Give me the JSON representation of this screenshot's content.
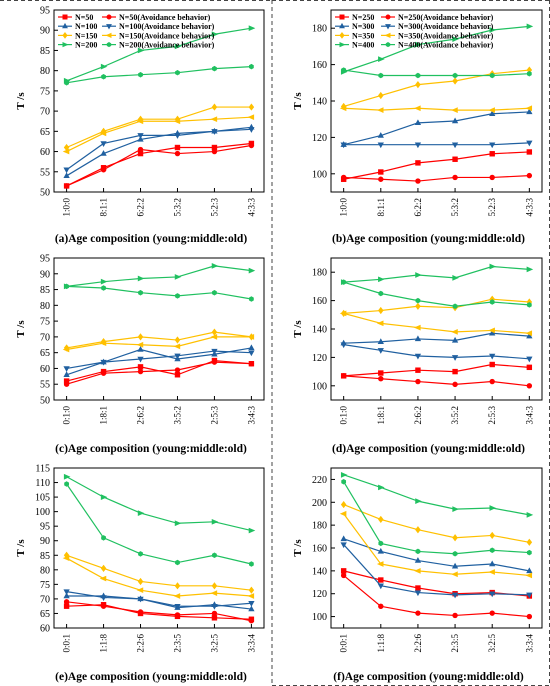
{
  "chart_data": [
    {
      "type": "line",
      "ylabel": "T /s",
      "xlabel": "(a)Age composition (young:middle:old)",
      "categories": [
        "1:0:0",
        "8:1:1",
        "6:2:2",
        "5:3:2",
        "5:2:3",
        "4:3:3"
      ],
      "ylim": [
        50,
        95
      ],
      "yticks": [
        50,
        55,
        60,
        65,
        70,
        75,
        80,
        85,
        90,
        95
      ],
      "legend_position": "top-left",
      "series": [
        {
          "name": "N=50",
          "color": "#ff0000",
          "marker": "square",
          "values": [
            51.5,
            56.0,
            59.5,
            61.0,
            61.0,
            62.0
          ]
        },
        {
          "name": "N=50(Avoidance behavior)",
          "color": "#ff0000",
          "marker": "circle",
          "values": [
            51.5,
            55.5,
            60.5,
            59.5,
            60.0,
            61.5
          ]
        },
        {
          "name": "N=100",
          "color": "#2060a0",
          "marker": "triangle-up",
          "values": [
            54.0,
            59.5,
            63.0,
            64.5,
            65.0,
            66.0
          ]
        },
        {
          "name": "N=100(Avoidance behavior)",
          "color": "#2060a0",
          "marker": "triangle-down",
          "values": [
            55.5,
            62.0,
            64.0,
            64.0,
            65.0,
            65.5
          ]
        },
        {
          "name": "N=150",
          "color": "#ffc000",
          "marker": "diamond",
          "values": [
            61.0,
            65.0,
            68.0,
            68.0,
            71.0,
            71.0
          ]
        },
        {
          "name": "N=150(Avoidance behavior)",
          "color": "#ffc000",
          "marker": "arrow-left",
          "values": [
            60.0,
            64.5,
            67.5,
            67.5,
            68.0,
            68.5
          ]
        },
        {
          "name": "N=200",
          "color": "#20c060",
          "marker": "arrow-right",
          "values": [
            77.5,
            81.0,
            85.0,
            86.0,
            89.0,
            90.5
          ]
        },
        {
          "name": "N=200(Avoidance behavior)",
          "color": "#20c060",
          "marker": "hexagon",
          "values": [
            77.0,
            78.5,
            79.0,
            79.5,
            80.5,
            81.0
          ]
        }
      ]
    },
    {
      "type": "line",
      "ylabel": "T /s",
      "xlabel": "(b)Age composition (young:middle:old)",
      "categories": [
        "1:0:0",
        "8:1:1",
        "6:2:2",
        "5:3:2",
        "5:2:3",
        "4:3:3"
      ],
      "ylim": [
        90,
        190
      ],
      "yticks": [
        100,
        120,
        140,
        160,
        180
      ],
      "legend_position": "top-left",
      "series": [
        {
          "name": "N=250",
          "color": "#ff0000",
          "marker": "square",
          "values": [
            97,
            101,
            106,
            108,
            111,
            112
          ]
        },
        {
          "name": "N=250(Avoidance behavior)",
          "color": "#ff0000",
          "marker": "circle",
          "values": [
            98,
            97,
            96,
            98,
            98,
            99
          ]
        },
        {
          "name": "N=300",
          "color": "#2060a0",
          "marker": "triangle-up",
          "values": [
            116,
            121,
            128,
            129,
            133,
            134
          ]
        },
        {
          "name": "N=300(Avoidance behavior)",
          "color": "#2060a0",
          "marker": "triangle-down",
          "values": [
            116,
            116,
            116,
            116,
            116,
            117
          ]
        },
        {
          "name": "N=350",
          "color": "#ffc000",
          "marker": "diamond",
          "values": [
            137,
            143,
            149,
            151,
            155,
            157
          ]
        },
        {
          "name": "N=350(Avoidance behavior)",
          "color": "#ffc000",
          "marker": "arrow-left",
          "values": [
            136,
            135,
            136,
            135,
            135,
            136
          ]
        },
        {
          "name": "N=400",
          "color": "#20c060",
          "marker": "arrow-right",
          "values": [
            156,
            163,
            171,
            174,
            179,
            181
          ]
        },
        {
          "name": "N=400(Avoidance behavior)",
          "color": "#20c060",
          "marker": "hexagon",
          "values": [
            157,
            154,
            154,
            154,
            154,
            155
          ]
        }
      ]
    },
    {
      "type": "line",
      "ylabel": "T /s",
      "xlabel": "(c)Age composition (young:middle:old)",
      "categories": [
        "0:1:0",
        "1:8:1",
        "2:6:2",
        "3:5:2",
        "2:5:3",
        "3:4:3"
      ],
      "ylim": [
        50,
        95
      ],
      "yticks": [
        50,
        55,
        60,
        65,
        70,
        75,
        80,
        85,
        90,
        95
      ],
      "series": [
        {
          "name": "N=50",
          "color": "#ff0000",
          "marker": "square",
          "values": [
            56.0,
            59.0,
            60.5,
            58.0,
            62.5,
            61.5
          ]
        },
        {
          "name": "N=50(Avoidance behavior)",
          "color": "#ff0000",
          "marker": "circle",
          "values": [
            55.0,
            58.5,
            59.0,
            59.5,
            62.0,
            61.5
          ]
        },
        {
          "name": "N=100",
          "color": "#2060a0",
          "marker": "triangle-up",
          "values": [
            58.0,
            62.0,
            66.0,
            63.0,
            64.5,
            66.5
          ]
        },
        {
          "name": "N=100(Avoidance behavior)",
          "color": "#2060a0",
          "marker": "triangle-down",
          "values": [
            60.0,
            62.0,
            63.0,
            64.0,
            65.5,
            65.0
          ]
        },
        {
          "name": "N=150",
          "color": "#ffc000",
          "marker": "diamond",
          "values": [
            66.5,
            68.5,
            70.0,
            69.0,
            71.5,
            70.0
          ]
        },
        {
          "name": "N=150(Avoidance behavior)",
          "color": "#ffc000",
          "marker": "arrow-left",
          "values": [
            66.0,
            68.0,
            67.5,
            67.0,
            70.0,
            70.0
          ]
        },
        {
          "name": "N=200",
          "color": "#20c060",
          "marker": "arrow-right",
          "values": [
            86.0,
            87.5,
            88.5,
            89.0,
            92.5,
            91.0
          ]
        },
        {
          "name": "N=200(Avoidance behavior)",
          "color": "#20c060",
          "marker": "hexagon",
          "values": [
            86.0,
            85.5,
            84.0,
            83.0,
            84.0,
            82.0
          ]
        }
      ]
    },
    {
      "type": "line",
      "ylabel": "T /s",
      "xlabel": "(d)Age composition (young:middle:old)",
      "categories": [
        "0:1:0",
        "1:8:1",
        "2:6:2",
        "3:5:2",
        "2:5:3",
        "3:4:3"
      ],
      "ylim": [
        90,
        190
      ],
      "yticks": [
        100,
        120,
        140,
        160,
        180
      ],
      "series": [
        {
          "name": "N=250",
          "color": "#ff0000",
          "marker": "square",
          "values": [
            107,
            109,
            111,
            110,
            115,
            113
          ]
        },
        {
          "name": "N=250(Avoidance behavior)",
          "color": "#ff0000",
          "marker": "circle",
          "values": [
            107,
            105,
            103,
            101,
            103,
            100
          ]
        },
        {
          "name": "N=300",
          "color": "#2060a0",
          "marker": "triangle-up",
          "values": [
            130,
            131,
            133,
            132,
            137,
            135
          ]
        },
        {
          "name": "N=300(Avoidance behavior)",
          "color": "#2060a0",
          "marker": "triangle-down",
          "values": [
            129,
            125,
            121,
            120,
            121,
            119
          ]
        },
        {
          "name": "N=350",
          "color": "#ffc000",
          "marker": "diamond",
          "values": [
            151,
            153,
            156,
            155,
            161,
            159
          ]
        },
        {
          "name": "N=350(Avoidance behavior)",
          "color": "#ffc000",
          "marker": "arrow-left",
          "values": [
            151,
            144,
            141,
            138,
            139,
            137
          ]
        },
        {
          "name": "N=400",
          "color": "#20c060",
          "marker": "arrow-right",
          "values": [
            173,
            175,
            178,
            176,
            184,
            182
          ]
        },
        {
          "name": "N=400(Avoidance behavior)",
          "color": "#20c060",
          "marker": "hexagon",
          "values": [
            173,
            165,
            160,
            156,
            159,
            157
          ]
        }
      ]
    },
    {
      "type": "line",
      "ylabel": "T /s",
      "xlabel": "(e)Age composition (young:middle:old)",
      "categories": [
        "0:0:1",
        "1:1:8",
        "2:2:6",
        "2:3:5",
        "3:2:5",
        "3:3:4"
      ],
      "ylim": [
        60,
        115
      ],
      "yticks": [
        60,
        65,
        70,
        75,
        80,
        85,
        90,
        95,
        100,
        105,
        110,
        115
      ],
      "series": [
        {
          "name": "N=50",
          "color": "#ff0000",
          "marker": "square",
          "values": [
            67.5,
            68.0,
            65.0,
            64.0,
            63.5,
            63.0
          ]
        },
        {
          "name": "N=50(Avoidance behavior)",
          "color": "#ff0000",
          "marker": "circle",
          "values": [
            69.0,
            67.5,
            65.5,
            64.5,
            65.0,
            62.5
          ]
        },
        {
          "name": "N=100",
          "color": "#2060a0",
          "marker": "triangle-up",
          "values": [
            71.0,
            71.0,
            70.0,
            67.0,
            68.0,
            66.5
          ]
        },
        {
          "name": "N=100(Avoidance behavior)",
          "color": "#2060a0",
          "marker": "triangle-down",
          "values": [
            72.5,
            70.5,
            70.0,
            67.5,
            67.5,
            68.5
          ]
        },
        {
          "name": "N=150",
          "color": "#ffc000",
          "marker": "diamond",
          "values": [
            85.0,
            80.5,
            76.0,
            74.5,
            74.5,
            73.0
          ]
        },
        {
          "name": "N=150(Avoidance behavior)",
          "color": "#ffc000",
          "marker": "arrow-left",
          "values": [
            84.0,
            77.0,
            73.0,
            71.0,
            72.0,
            71.0
          ]
        },
        {
          "name": "N=200",
          "color": "#20c060",
          "marker": "arrow-right",
          "values": [
            112.0,
            105.0,
            99.5,
            96.0,
            96.5,
            93.5
          ]
        },
        {
          "name": "N=200(Avoidance behavior)",
          "color": "#20c060",
          "marker": "hexagon",
          "values": [
            109.5,
            91.0,
            85.5,
            82.5,
            85.0,
            82.0
          ]
        }
      ]
    },
    {
      "type": "line",
      "ylabel": "T /s",
      "xlabel": "(f)Age composition (young:middle:old)",
      "categories": [
        "0:0:1",
        "1:1:8",
        "2:2:6",
        "2:3:5",
        "3:2:5",
        "3:3:4"
      ],
      "ylim": [
        90,
        230
      ],
      "yticks": [
        100,
        120,
        140,
        160,
        180,
        200,
        220
      ],
      "series": [
        {
          "name": "N=250",
          "color": "#ff0000",
          "marker": "square",
          "values": [
            140,
            132,
            125,
            120,
            121,
            118
          ]
        },
        {
          "name": "N=250(Avoidance behavior)",
          "color": "#ff0000",
          "marker": "circle",
          "values": [
            136,
            109,
            103,
            101,
            103,
            100
          ]
        },
        {
          "name": "N=300",
          "color": "#2060a0",
          "marker": "triangle-up",
          "values": [
            168,
            157,
            149,
            144,
            146,
            140
          ]
        },
        {
          "name": "N=300(Avoidance behavior)",
          "color": "#2060a0",
          "marker": "triangle-down",
          "values": [
            163,
            127,
            121,
            119,
            120,
            119
          ]
        },
        {
          "name": "N=350",
          "color": "#ffc000",
          "marker": "diamond",
          "values": [
            198,
            185,
            176,
            169,
            171,
            165
          ]
        },
        {
          "name": "N=350(Avoidance behavior)",
          "color": "#ffc000",
          "marker": "arrow-left",
          "values": [
            190,
            146,
            140,
            137,
            139,
            136
          ]
        },
        {
          "name": "N=400",
          "color": "#20c060",
          "marker": "arrow-right",
          "values": [
            224,
            213,
            201,
            194,
            195,
            189
          ]
        },
        {
          "name": "N=400(Avoidance behavior)",
          "color": "#20c060",
          "marker": "hexagon",
          "values": [
            218,
            164,
            157,
            155,
            158,
            156
          ]
        }
      ]
    }
  ]
}
